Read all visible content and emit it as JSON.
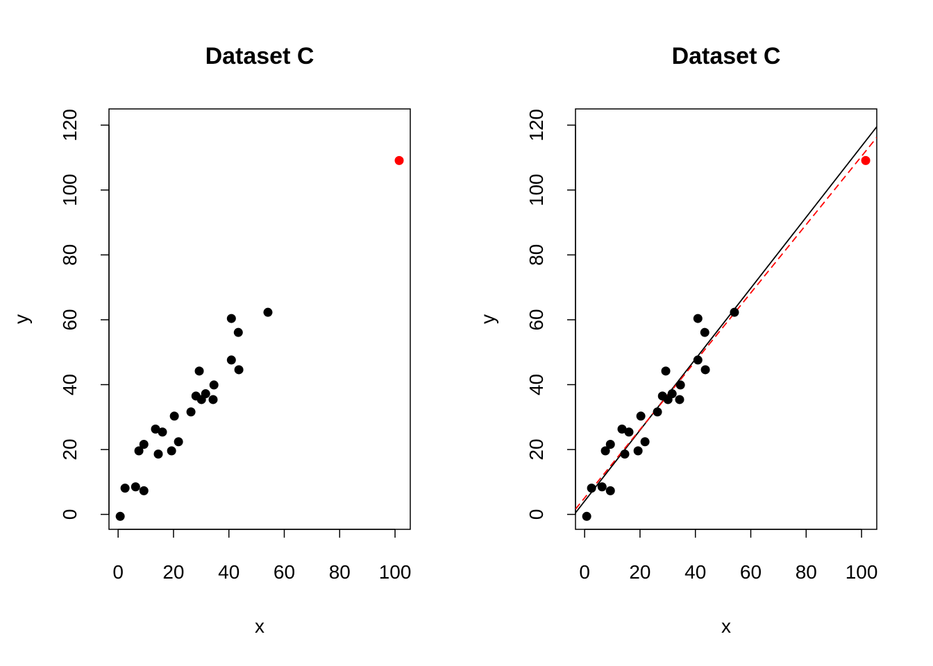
{
  "chart_data": [
    {
      "type": "scatter",
      "title": "Dataset C",
      "xlabel": "x",
      "ylabel": "y",
      "xlim": [
        -3.3,
        105.5
      ],
      "ylim": [
        -4.6,
        125
      ],
      "xticks": [
        0,
        20,
        40,
        60,
        80,
        100
      ],
      "yticks": [
        0,
        20,
        40,
        60,
        80,
        100,
        120
      ],
      "grid": false,
      "points": {
        "x": [
          0.75,
          2.5,
          6.3,
          9.3,
          7.5,
          9.3,
          13.5,
          14.5,
          16.0,
          19.3,
          20.3,
          21.8,
          26.3,
          28.1,
          29.3,
          30.1,
          31.6,
          34.3,
          34.6,
          40.9,
          40.9,
          43.4,
          43.6,
          54.1
        ],
        "y": [
          -0.6,
          8.1,
          8.5,
          7.3,
          19.6,
          21.6,
          26.3,
          18.6,
          25.4,
          19.6,
          30.3,
          22.4,
          31.6,
          36.5,
          44.2,
          35.4,
          37.2,
          35.4,
          39.9,
          60.4,
          47.6,
          56.1,
          44.6,
          62.3
        ],
        "color": "#000000"
      },
      "outlier": {
        "x": 101.5,
        "y": 109.1,
        "color": "#ff0000"
      }
    },
    {
      "type": "scatter",
      "title": "Dataset C",
      "xlabel": "x",
      "ylabel": "y",
      "xlim": [
        -3.3,
        105.5
      ],
      "ylim": [
        -4.6,
        125
      ],
      "xticks": [
        0,
        20,
        40,
        60,
        80,
        100
      ],
      "yticks": [
        0,
        20,
        40,
        60,
        80,
        100,
        120
      ],
      "grid": false,
      "points": {
        "x": [
          0.75,
          2.5,
          6.3,
          9.3,
          7.5,
          9.3,
          13.5,
          14.5,
          16.0,
          19.3,
          20.3,
          21.8,
          26.3,
          28.1,
          29.3,
          30.1,
          31.6,
          34.3,
          34.6,
          40.9,
          40.9,
          43.4,
          43.6,
          54.1
        ],
        "y": [
          -0.6,
          8.1,
          8.5,
          7.3,
          19.6,
          21.6,
          26.3,
          18.6,
          25.4,
          19.6,
          30.3,
          22.4,
          31.6,
          36.5,
          44.2,
          35.4,
          37.2,
          35.4,
          39.9,
          60.4,
          47.6,
          56.1,
          44.6,
          62.3
        ],
        "color": "#000000"
      },
      "outlier": {
        "x": 101.5,
        "y": 109.1,
        "color": "#ff0000"
      },
      "lines": [
        {
          "intercept": 4.1,
          "slope": 1.094,
          "color": "#000000",
          "style": "solid"
        },
        {
          "intercept": 5.1,
          "slope": 1.053,
          "color": "#ff0000",
          "style": "dashed"
        }
      ]
    }
  ]
}
